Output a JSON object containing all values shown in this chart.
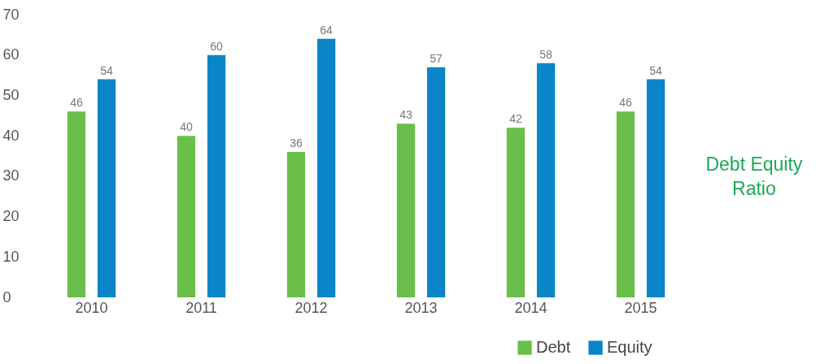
{
  "chart_data": {
    "type": "bar",
    "title": "Debt Equity Ratio",
    "categories": [
      "2010",
      "2011",
      "2012",
      "2013",
      "2014",
      "2015"
    ],
    "series": [
      {
        "name": "Debt",
        "color": "#6abf4b",
        "values": [
          46,
          40,
          36,
          43,
          42,
          46
        ]
      },
      {
        "name": "Equity",
        "color": "#0a86c8",
        "values": [
          54,
          60,
          64,
          57,
          58,
          54
        ]
      }
    ],
    "ylim": [
      0,
      70
    ],
    "yticks": [
      0,
      10,
      20,
      30,
      40,
      50,
      60,
      70
    ],
    "grid": false,
    "legend": "bottom right",
    "data_labels": true
  }
}
